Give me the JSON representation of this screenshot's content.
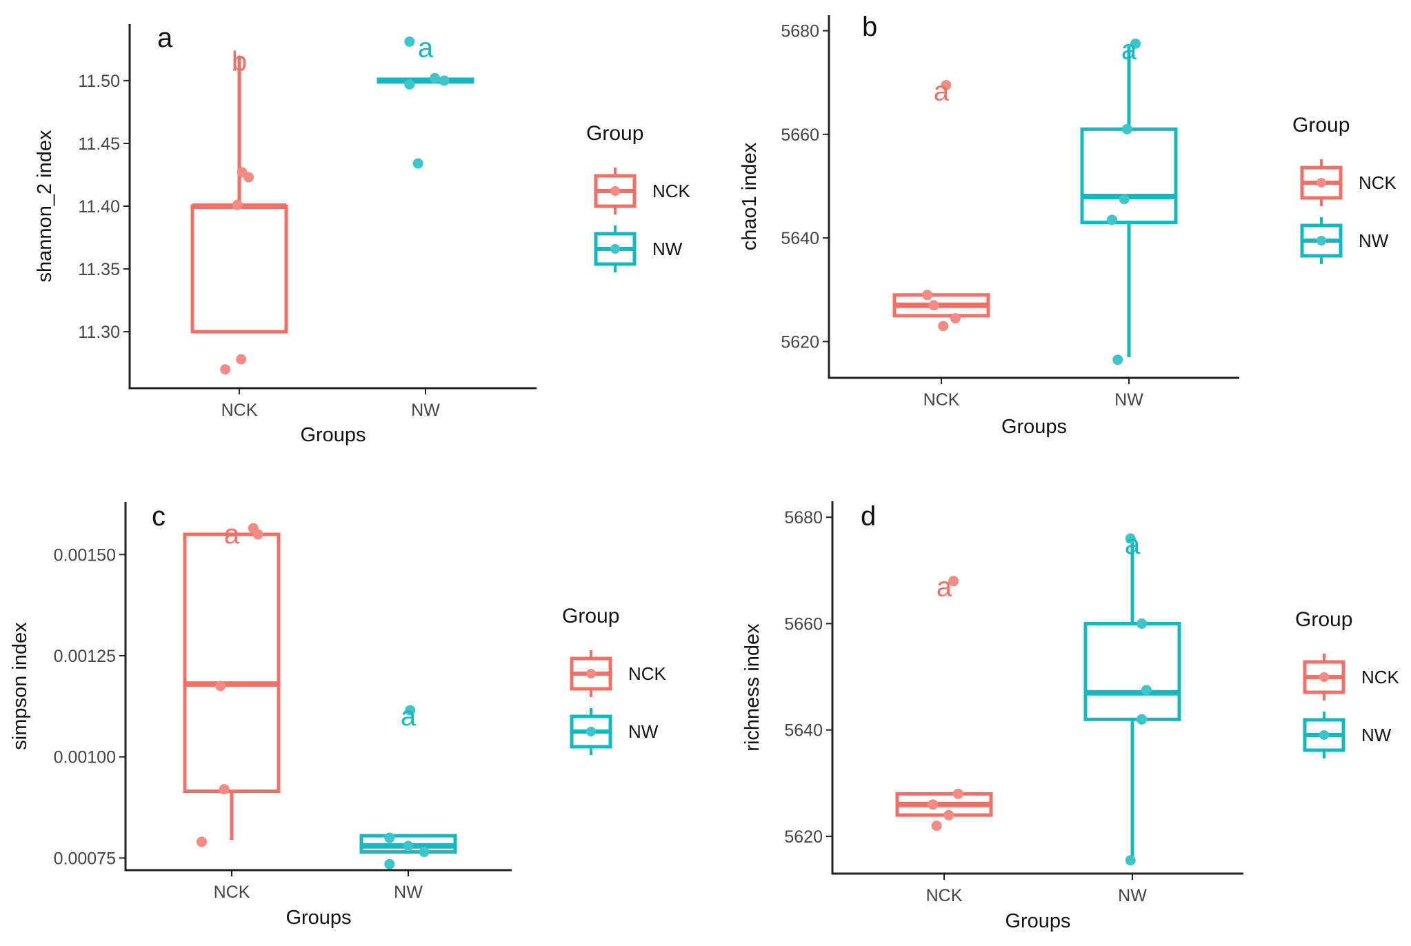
{
  "figure": {
    "type": "box_plot_grid",
    "rows": 2,
    "cols": 2
  },
  "colors": {
    "NCK": "#F07068",
    "NW": "#14B8BE",
    "axis": "#222222",
    "text": "#111111"
  },
  "chart_data": [
    {
      "panel": "a",
      "type": "box",
      "xlabel": "Groups",
      "ylabel": "shannon_2 index",
      "categories": [
        "NCK",
        "NW"
      ],
      "ylim": [
        11.255,
        11.545
      ],
      "yticks": [
        11.3,
        11.35,
        11.4,
        11.45,
        11.5
      ],
      "ytick_labels": [
        "11.30",
        "11.35",
        "11.40",
        "11.45",
        "11.50"
      ],
      "legend": {
        "title": "Group",
        "entries": [
          "NCK",
          "NW"
        ],
        "position": "right"
      },
      "boxes": [
        {
          "group": "NCK",
          "q1": 11.3,
          "median": 11.4,
          "q3": 11.4,
          "whisker_low": 11.3,
          "whisker_high": 11.52,
          "letter": "b",
          "points": [
            [
              -0.15,
              11.27
            ],
            [
              0.02,
              11.278
            ],
            [
              0.03,
              11.427
            ],
            [
              0.1,
              11.423
            ],
            [
              -0.02,
              11.401
            ]
          ]
        },
        {
          "group": "NW",
          "q1": 11.499,
          "median": 11.5,
          "q3": 11.501,
          "whisker_low": 11.499,
          "whisker_high": 11.501,
          "letter": "a",
          "points": [
            [
              -0.17,
              11.531
            ],
            [
              -0.17,
              11.497
            ],
            [
              -0.08,
              11.434
            ],
            [
              0.1,
              11.502
            ],
            [
              0.2,
              11.5
            ]
          ]
        }
      ]
    },
    {
      "panel": "b",
      "type": "box",
      "xlabel": "Groups",
      "ylabel": "chao1 index",
      "categories": [
        "NCK",
        "NW"
      ],
      "ylim": [
        5613,
        5683
      ],
      "yticks": [
        5620,
        5640,
        5660,
        5680
      ],
      "ytick_labels": [
        "5620",
        "5640",
        "5660",
        "5680"
      ],
      "legend": {
        "title": "Group",
        "entries": [
          "NCK",
          "NW"
        ],
        "position": "right"
      },
      "boxes": [
        {
          "group": "NCK",
          "q1": 5625,
          "median": 5627,
          "q3": 5629,
          "whisker_low": 5625,
          "whisker_high": 5629,
          "letter": "a",
          "points": [
            [
              -0.15,
              5629.0
            ],
            [
              0.02,
              5623.0
            ],
            [
              0.15,
              5624.5
            ],
            [
              0.05,
              5669.5
            ],
            [
              -0.08,
              5627.0
            ]
          ]
        },
        {
          "group": "NW",
          "q1": 5643,
          "median": 5648,
          "q3": 5661,
          "whisker_low": 5617,
          "whisker_high": 5677,
          "letter": "a",
          "points": [
            [
              -0.12,
              5616.5
            ],
            [
              -0.18,
              5643.5
            ],
            [
              -0.05,
              5647.5
            ],
            [
              -0.02,
              5661.0
            ],
            [
              0.07,
              5677.5
            ]
          ]
        }
      ]
    },
    {
      "panel": "c",
      "type": "box",
      "xlabel": "Groups",
      "ylabel": "simpson index",
      "categories": [
        "NCK",
        "NW"
      ],
      "ylim": [
        0.00072,
        0.00163
      ],
      "yticks": [
        0.00075,
        0.001,
        0.00125,
        0.0015
      ],
      "ytick_labels": [
        "0.00075",
        "0.00100",
        "0.00125",
        "0.00150"
      ],
      "legend": {
        "title": "Group",
        "entries": [
          "NCK",
          "NW"
        ],
        "position": "right"
      },
      "boxes": [
        {
          "group": "NCK",
          "q1": 0.000915,
          "median": 0.00118,
          "q3": 0.00155,
          "whisker_low": 0.000795,
          "whisker_high": 0.00155,
          "letter": "a",
          "points": [
            [
              -0.32,
              0.00079
            ],
            [
              -0.08,
              0.00092
            ],
            [
              -0.12,
              0.001175
            ],
            [
              0.23,
              0.001565
            ],
            [
              0.28,
              0.00155
            ]
          ]
        },
        {
          "group": "NW",
          "q1": 0.000765,
          "median": 0.00078,
          "q3": 0.000805,
          "whisker_low": 0.000765,
          "whisker_high": 0.000805,
          "letter": "a",
          "points": [
            [
              -0.2,
              0.000735
            ],
            [
              -0.2,
              0.0008
            ],
            [
              0.17,
              0.000765
            ],
            [
              0.0,
              0.00078
            ],
            [
              0.02,
              0.001115
            ]
          ]
        }
      ]
    },
    {
      "panel": "d",
      "type": "box",
      "xlabel": "Groups",
      "ylabel": "richness index",
      "categories": [
        "NCK",
        "NW"
      ],
      "ylim": [
        5613,
        5683
      ],
      "yticks": [
        5620,
        5640,
        5660,
        5680
      ],
      "ytick_labels": [
        "5620",
        "5640",
        "5660",
        "5680"
      ],
      "legend": {
        "title": "Group",
        "entries": [
          "NCK",
          "NW"
        ],
        "position": "right"
      },
      "boxes": [
        {
          "group": "NCK",
          "q1": 5624,
          "median": 5626,
          "q3": 5628,
          "whisker_low": 5624,
          "whisker_high": 5628,
          "letter": "a",
          "points": [
            [
              -0.08,
              5622.0
            ],
            [
              0.05,
              5624.0
            ],
            [
              0.15,
              5628.0
            ],
            [
              0.1,
              5668.0
            ],
            [
              -0.12,
              5626.0
            ]
          ]
        },
        {
          "group": "NW",
          "q1": 5642,
          "median": 5647,
          "q3": 5660,
          "whisker_low": 5615,
          "whisker_high": 5676,
          "letter": "a",
          "points": [
            [
              -0.02,
              5615.5
            ],
            [
              0.1,
              5642.0
            ],
            [
              0.15,
              5647.5
            ],
            [
              0.1,
              5660.0
            ],
            [
              -0.02,
              5676.0
            ]
          ]
        }
      ]
    }
  ]
}
